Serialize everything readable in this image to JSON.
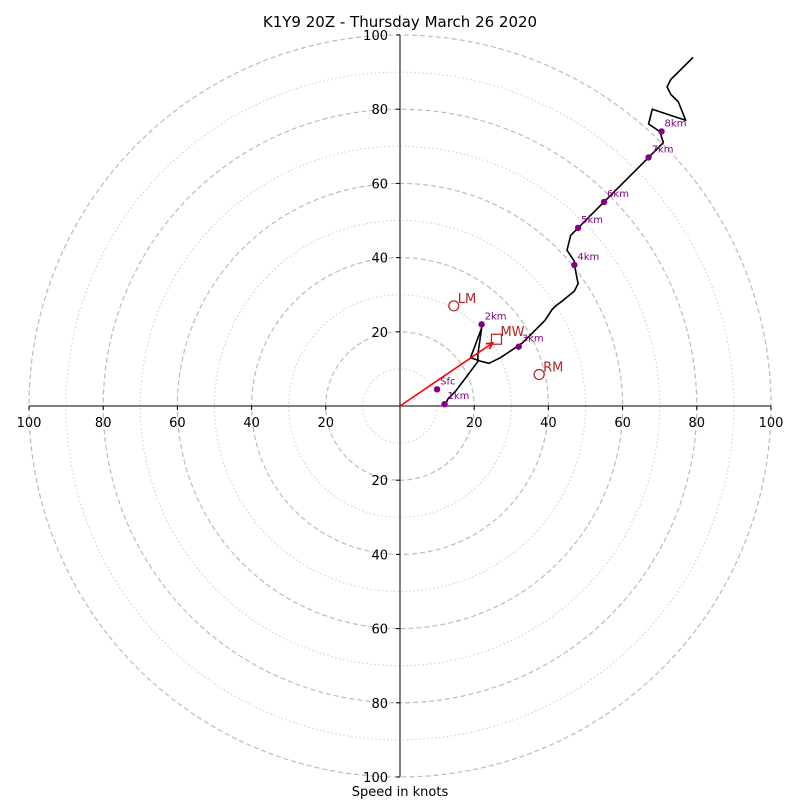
{
  "chart_data": {
    "type": "hodograph",
    "title": "K1Y9 20Z - Thursday March 26 2020",
    "xlabel": "Speed in knots",
    "units": "knots",
    "xlim": [
      -100,
      100
    ],
    "ylim": [
      -100,
      100
    ],
    "x_ticks": [
      {
        "value": -100,
        "label": "100"
      },
      {
        "value": -80,
        "label": "80"
      },
      {
        "value": -60,
        "label": "60"
      },
      {
        "value": -40,
        "label": "40"
      },
      {
        "value": -20,
        "label": "20"
      },
      {
        "value": 20,
        "label": "20"
      },
      {
        "value": 40,
        "label": "40"
      },
      {
        "value": 60,
        "label": "60"
      },
      {
        "value": 80,
        "label": "80"
      },
      {
        "value": 100,
        "label": "100"
      }
    ],
    "y_ticks": [
      {
        "value": 100,
        "label": "100"
      },
      {
        "value": 80,
        "label": "80"
      },
      {
        "value": 60,
        "label": "60"
      },
      {
        "value": 40,
        "label": "40"
      },
      {
        "value": 20,
        "label": "20"
      },
      {
        "value": -20,
        "label": "20"
      },
      {
        "value": -40,
        "label": "40"
      },
      {
        "value": -60,
        "label": "60"
      },
      {
        "value": -80,
        "label": "80"
      },
      {
        "value": -100,
        "label": "100"
      }
    ],
    "major_rings": [
      20,
      40,
      60,
      80,
      100
    ],
    "minor_rings": [
      10,
      30,
      50,
      70,
      90
    ],
    "grid": true,
    "hodograph_trace": [
      [
        12,
        0
      ],
      [
        13,
        2
      ],
      [
        15,
        4
      ],
      [
        18,
        8
      ],
      [
        21,
        12
      ],
      [
        21,
        14
      ],
      [
        22,
        21
      ],
      [
        19,
        13
      ],
      [
        22,
        12
      ],
      [
        24,
        11.5
      ],
      [
        27,
        13
      ],
      [
        30,
        15
      ],
      [
        33,
        17
      ],
      [
        36,
        20
      ],
      [
        39,
        23
      ],
      [
        41,
        26
      ],
      [
        42,
        27
      ],
      [
        44,
        28.5
      ],
      [
        47,
        31
      ],
      [
        48,
        33
      ],
      [
        47,
        38
      ],
      [
        47,
        39
      ],
      [
        45,
        42
      ],
      [
        46,
        46
      ],
      [
        48,
        48
      ],
      [
        55,
        55
      ],
      [
        61,
        61
      ],
      [
        67,
        67
      ],
      [
        71,
        71
      ],
      [
        70,
        74
      ],
      [
        67,
        76
      ],
      [
        68,
        80
      ],
      [
        74,
        78
      ],
      [
        77,
        77
      ],
      [
        75,
        82
      ],
      [
        73,
        84
      ],
      [
        72,
        86
      ],
      [
        73,
        88
      ],
      [
        79,
        94
      ]
    ],
    "height_markers": [
      {
        "label": "Sfc",
        "u": 10,
        "v": 4.5
      },
      {
        "label": "1km",
        "u": 12,
        "v": 0.5
      },
      {
        "label": "2km",
        "u": 22,
        "v": 22
      },
      {
        "label": "3km",
        "u": 32,
        "v": 16
      },
      {
        "label": "4km",
        "u": 47,
        "v": 38
      },
      {
        "label": "5km",
        "u": 48,
        "v": 48
      },
      {
        "label": "6km",
        "u": 55,
        "v": 55
      },
      {
        "label": "7km",
        "u": 67,
        "v": 67
      },
      {
        "label": "8km",
        "u": 70.5,
        "v": 74
      }
    ],
    "storm_motions": [
      {
        "label": "LM",
        "u": 14.5,
        "v": 27,
        "marker": "circle"
      },
      {
        "label": "MW",
        "u": 26,
        "v": 18,
        "marker": "square"
      },
      {
        "label": "RM",
        "u": 37.5,
        "v": 8.5,
        "marker": "circle"
      }
    ],
    "mean_wind_vector": {
      "u0": 0,
      "v0": 0,
      "u1": 25,
      "v1": 17
    },
    "colors": {
      "trace": "#000000",
      "height_markers": "#800080",
      "storm_motion": "#b22222",
      "vector": "#ff0000",
      "major_grid": "#bbbbbb",
      "minor_grid": "#cccccc"
    }
  }
}
